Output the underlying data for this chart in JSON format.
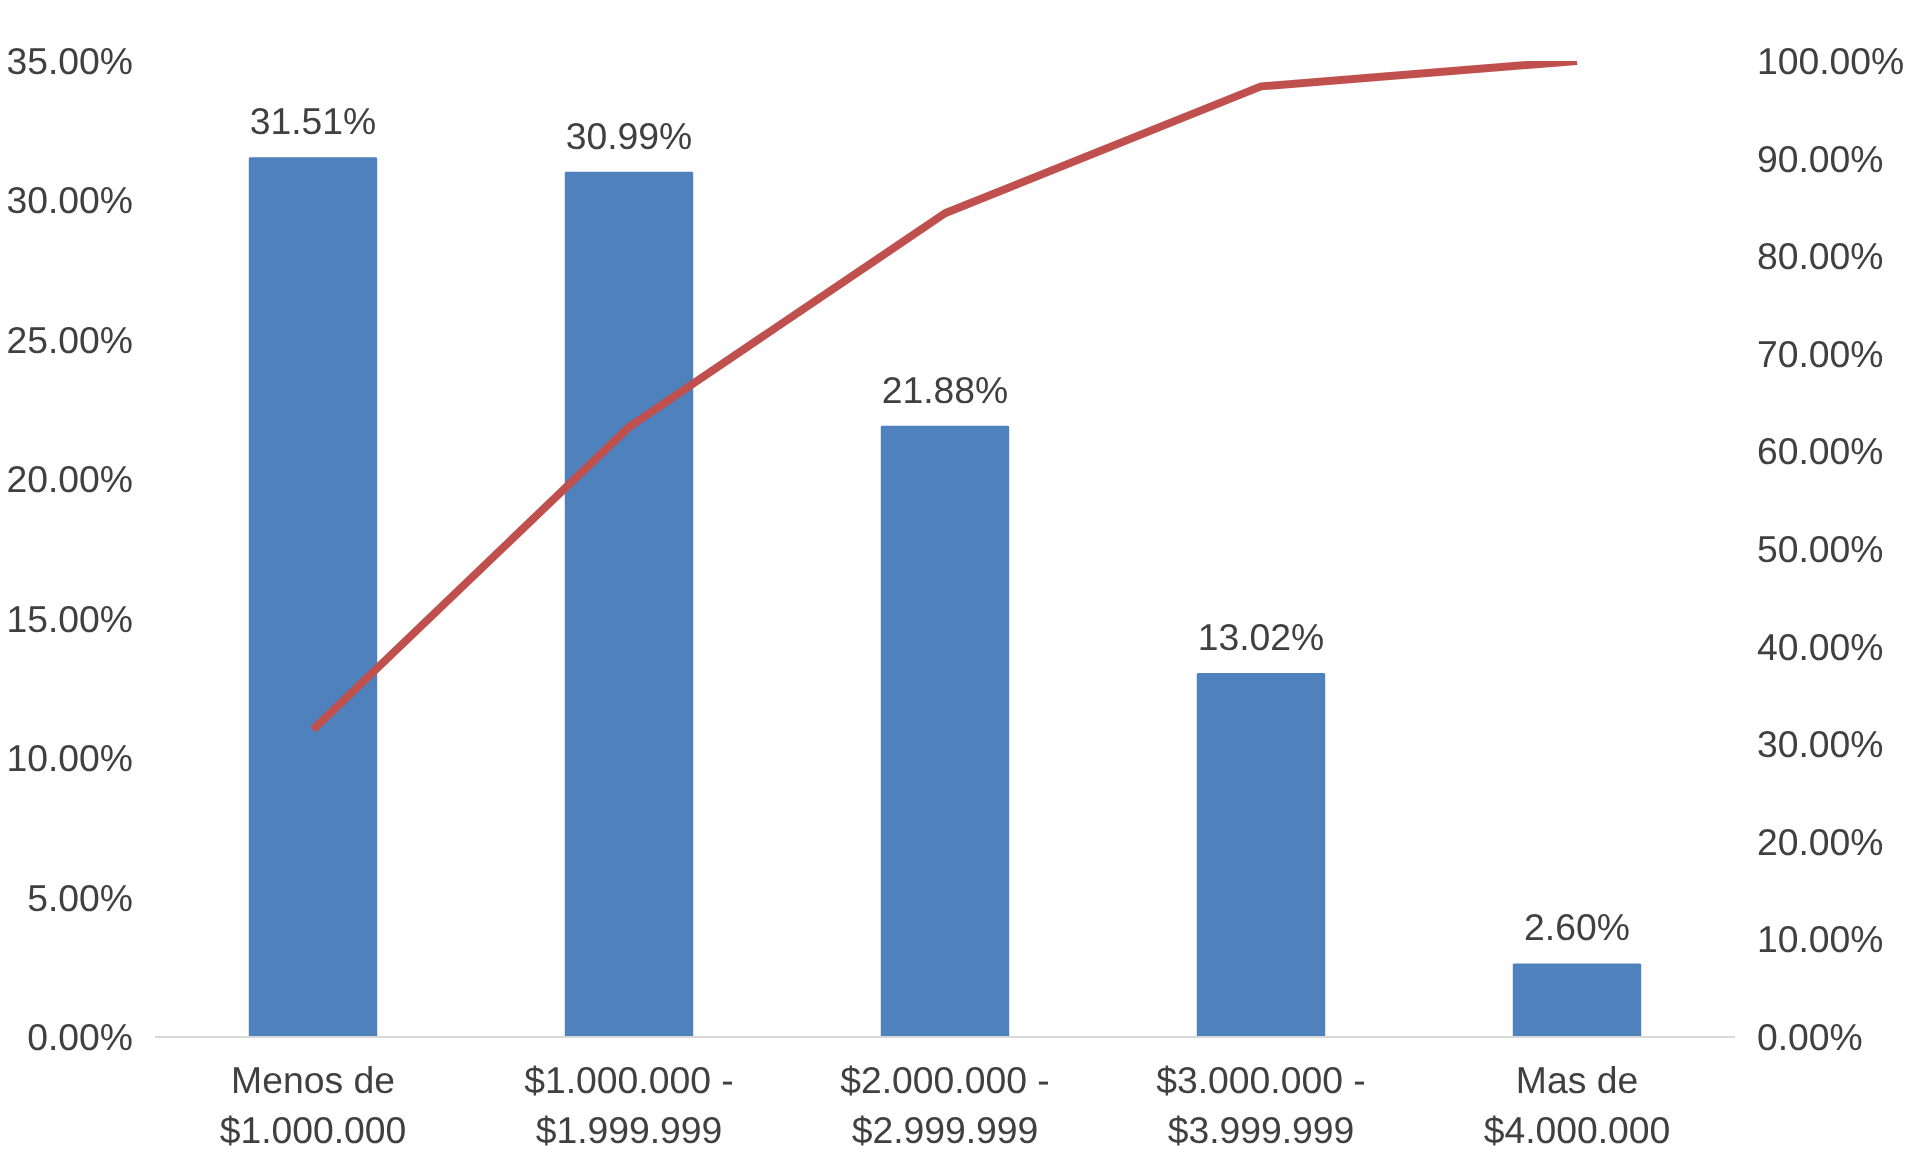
{
  "chart_data": {
    "type": "bar",
    "categories": [
      "Menos de\n$1.000.000",
      "$1.000.000 -\n$1.999.999",
      "$2.000.000 -\n$2.999.999",
      "$3.000.000 -\n$3.999.999",
      "Mas de\n$4.000.000"
    ],
    "series": [
      {
        "color": "#4f81bd",
        "values": [
          31.51,
          30.99,
          21.88,
          13.02,
          2.6
        ],
        "value_labels": [
          "31.51%",
          "30.99%",
          "21.88%",
          "13.02%",
          "2.60%"
        ]
      },
      {
        "type": "line",
        "axis": "y2",
        "color": "#c0504d",
        "values": [
          31.5,
          62.5,
          84.4,
          97.4,
          100
        ]
      }
    ],
    "ylim": [
      0,
      35
    ],
    "yticks": [
      {
        "value": 0,
        "label": "0.00%"
      },
      {
        "value": 5,
        "label": "5.00%"
      },
      {
        "value": 10,
        "label": "10.00%"
      },
      {
        "value": 15,
        "label": "15.00%"
      },
      {
        "value": 20,
        "label": "20.00%"
      },
      {
        "value": 25,
        "label": "25.00%"
      },
      {
        "value": 30,
        "label": "30.00%"
      },
      {
        "value": 35,
        "label": "35.00%"
      }
    ],
    "y2lim": [
      0,
      100
    ],
    "y2ticks": [
      {
        "value": 0,
        "label": "0.00%"
      },
      {
        "value": 10,
        "label": "10.00%"
      },
      {
        "value": 20,
        "label": "20.00%"
      },
      {
        "value": 30,
        "label": "30.00%"
      },
      {
        "value": 40,
        "label": "40.00%"
      },
      {
        "value": 50,
        "label": "50.00%"
      },
      {
        "value": 60,
        "label": "60.00%"
      },
      {
        "value": 70,
        "label": "70.00%"
      },
      {
        "value": 80,
        "label": "80.00%"
      },
      {
        "value": 90,
        "label": "90.00%"
      },
      {
        "value": 100,
        "label": "100.00%"
      }
    ],
    "grid": false,
    "marker": "none",
    "line_style": "solid"
  }
}
